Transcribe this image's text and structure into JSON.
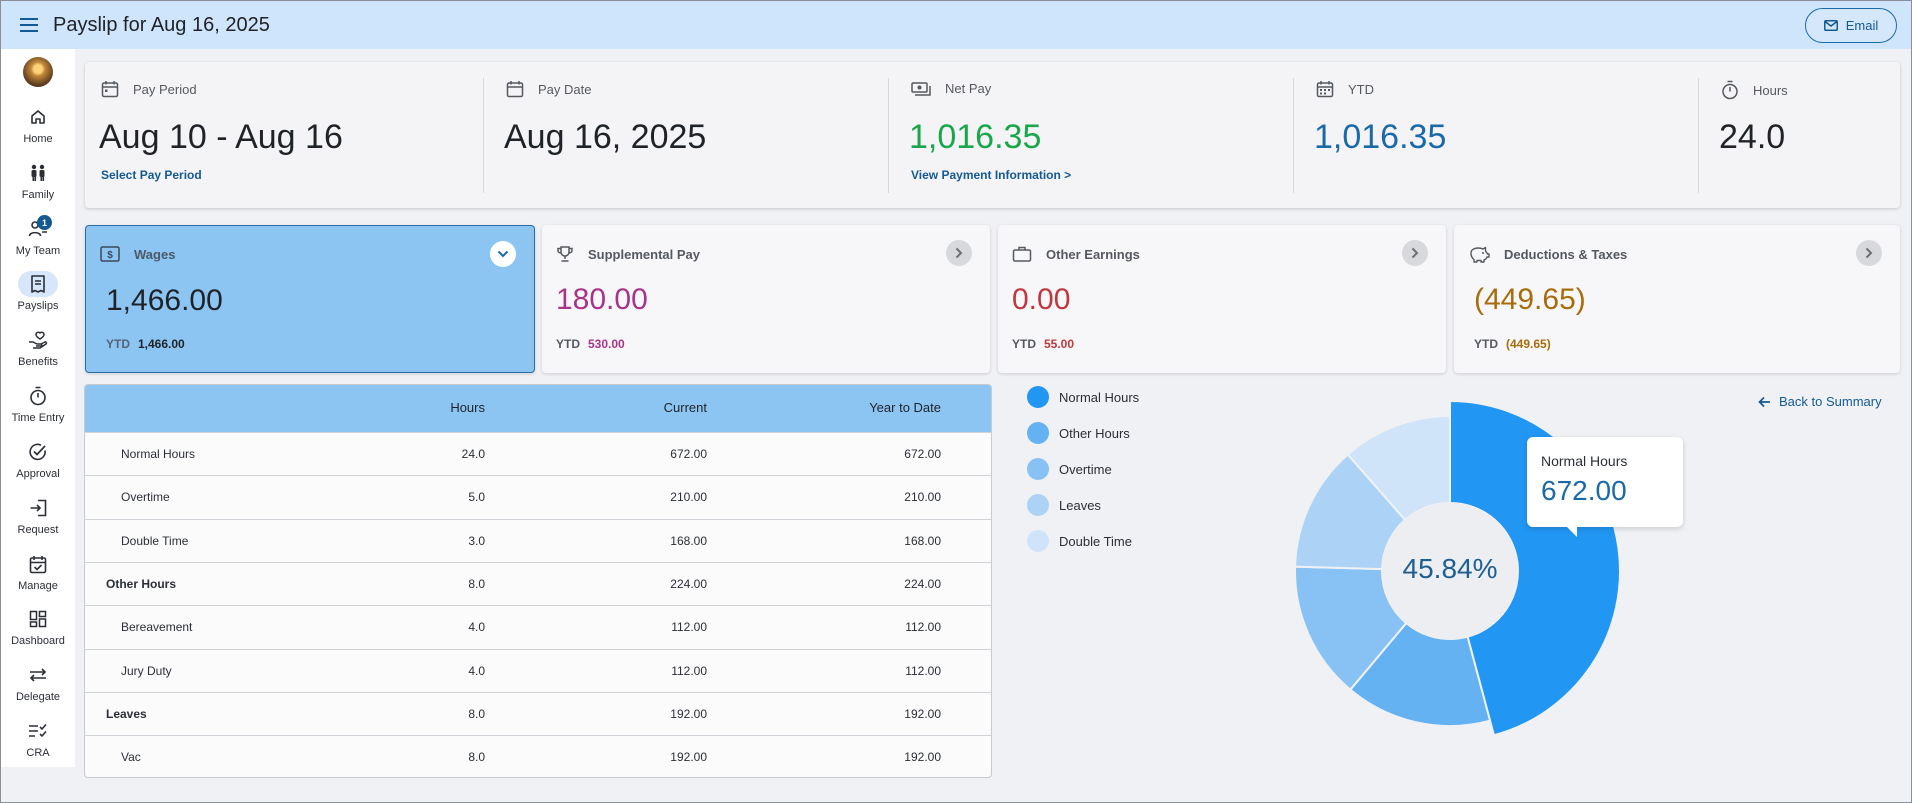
{
  "header": {
    "title": "Payslip for Aug 16, 2025",
    "email_label": "Email"
  },
  "sidebar": {
    "items": [
      {
        "label": "Home",
        "icon": "home-icon"
      },
      {
        "label": "Family",
        "icon": "family-icon"
      },
      {
        "label": "My Team",
        "icon": "team-icon",
        "badge": "1"
      },
      {
        "label": "Payslips",
        "icon": "payslip-icon",
        "active": true
      },
      {
        "label": "Benefits",
        "icon": "benefits-icon"
      },
      {
        "label": "Time Entry",
        "icon": "stopwatch-icon"
      },
      {
        "label": "Approval",
        "icon": "approval-icon"
      },
      {
        "label": "Request",
        "icon": "request-icon"
      },
      {
        "label": "Manage",
        "icon": "manage-icon"
      },
      {
        "label": "Dashboard",
        "icon": "dashboard-icon"
      },
      {
        "label": "Delegate",
        "icon": "delegate-icon"
      },
      {
        "label": "CRA",
        "icon": "cra-icon"
      }
    ]
  },
  "summary": {
    "pay_period": {
      "label": "Pay Period",
      "value": "Aug 10 - Aug 16",
      "link": "Select Pay Period"
    },
    "pay_date": {
      "label": "Pay Date",
      "value": "Aug 16, 2025"
    },
    "net_pay": {
      "label": "Net Pay",
      "value": "1,016.35",
      "link": "View Payment Information >",
      "color": "#1aa64a"
    },
    "ytd": {
      "label": "YTD",
      "value": "1,016.35",
      "color": "#1b6aa8"
    },
    "hours": {
      "label": "Hours",
      "value": "24.0"
    }
  },
  "cards": {
    "wages": {
      "title": "Wages",
      "value": "1,466.00",
      "ytd_label": "YTD",
      "ytd_value": "1,466.00"
    },
    "supplemental": {
      "title": "Supplemental Pay",
      "value": "180.00",
      "ytd_label": "YTD",
      "ytd_value": "530.00",
      "color": "#a8348a"
    },
    "other": {
      "title": "Other Earnings",
      "value": "0.00",
      "ytd_label": "YTD",
      "ytd_value": "55.00",
      "color": "#c0383e"
    },
    "deductions": {
      "title": "Deductions & Taxes",
      "value": "(449.65)",
      "ytd_label": "YTD",
      "ytd_value": "(449.65)",
      "color": "#a86d0a"
    }
  },
  "table": {
    "headers": [
      "",
      "Hours",
      "Current",
      "Year to Date"
    ],
    "rows": [
      {
        "label": "Normal Hours",
        "hours": "24.0",
        "current": "672.00",
        "ytd": "672.00",
        "level": "sub"
      },
      {
        "label": "Overtime",
        "hours": "5.0",
        "current": "210.00",
        "ytd": "210.00",
        "level": "sub"
      },
      {
        "label": "Double Time",
        "hours": "3.0",
        "current": "168.00",
        "ytd": "168.00",
        "level": "sub"
      },
      {
        "label": "Other Hours",
        "hours": "8.0",
        "current": "224.00",
        "ytd": "224.00",
        "level": "group"
      },
      {
        "label": "Bereavement",
        "hours": "4.0",
        "current": "112.00",
        "ytd": "112.00",
        "level": "sub"
      },
      {
        "label": "Jury Duty",
        "hours": "4.0",
        "current": "112.00",
        "ytd": "112.00",
        "level": "sub"
      },
      {
        "label": "Leaves",
        "hours": "8.0",
        "current": "192.00",
        "ytd": "192.00",
        "level": "group"
      },
      {
        "label": "Vac",
        "hours": "8.0",
        "current": "192.00",
        "ytd": "192.00",
        "level": "sub"
      }
    ]
  },
  "chart": {
    "back_label": "Back to Summary",
    "center_label": "45.84%",
    "tooltip": {
      "title": "Normal Hours",
      "value": "672.00"
    },
    "legend": [
      {
        "label": "Normal Hours",
        "color": "#2196f3"
      },
      {
        "label": "Other Hours",
        "color": "#64b2f2"
      },
      {
        "label": "Overtime",
        "color": "#88c2f4"
      },
      {
        "label": "Leaves",
        "color": "#acd3f6"
      },
      {
        "label": "Double Time",
        "color": "#cfe4f9"
      }
    ]
  },
  "chart_data": {
    "type": "pie",
    "categories": [
      "Normal Hours",
      "Other Hours",
      "Overtime",
      "Leaves",
      "Double Time"
    ],
    "values": [
      672.0,
      224.0,
      210.0,
      192.0,
      168.0
    ],
    "colors": [
      "#2196f3",
      "#64b2f2",
      "#88c2f4",
      "#acd3f6",
      "#cfe4f9"
    ]
  }
}
